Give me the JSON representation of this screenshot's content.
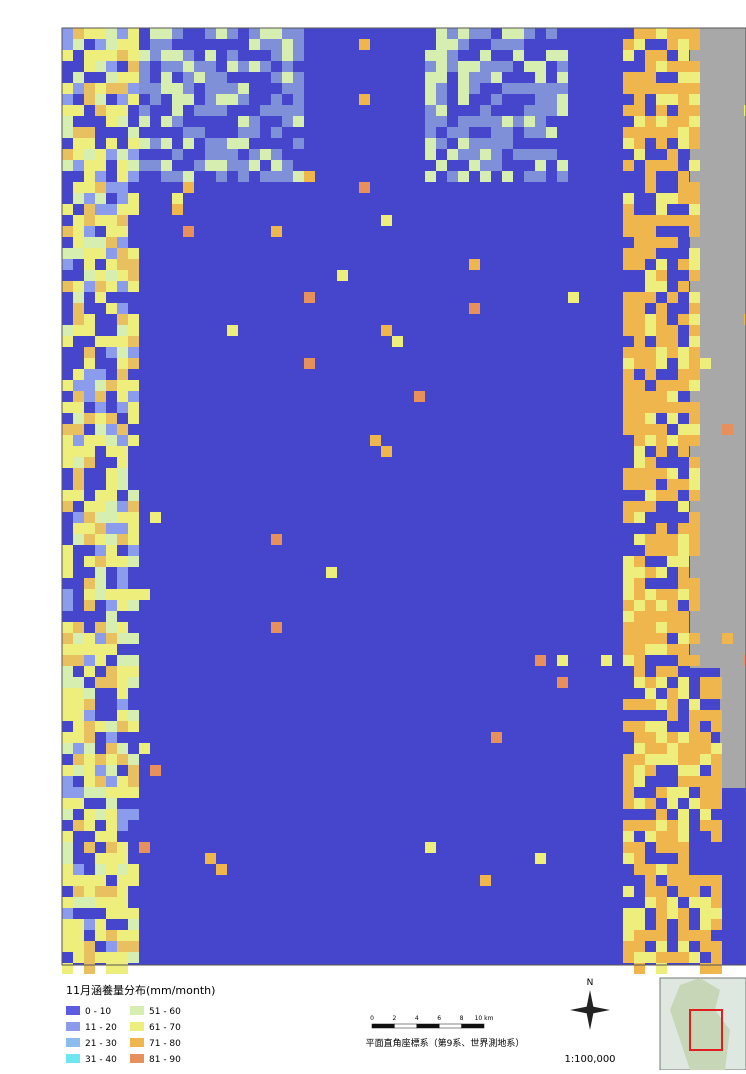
{
  "legend": {
    "title": "11月涵養量分布(mm/month)",
    "items": [
      {
        "label": "0 - 10",
        "color": "#5c5ce0"
      },
      {
        "label": "11 - 20",
        "color": "#8c9cec"
      },
      {
        "label": "21 - 30",
        "color": "#8cbcec"
      },
      {
        "label": "31 - 40",
        "color": "#6ee6f0"
      },
      {
        "label": "51 - 60",
        "color": "#d6eeb0"
      },
      {
        "label": "61 - 70",
        "color": "#eeee7c"
      },
      {
        "label": "71 - 80",
        "color": "#f0b64e"
      },
      {
        "label": "81 - 90",
        "color": "#e8905c"
      }
    ]
  },
  "scale": {
    "ticks": [
      "0",
      "2",
      "4",
      "6",
      "8",
      "10 km"
    ],
    "caption": "平面直角座標系（第9系、世界測地系）",
    "ratio": "1:100,000",
    "north": "N"
  }
}
